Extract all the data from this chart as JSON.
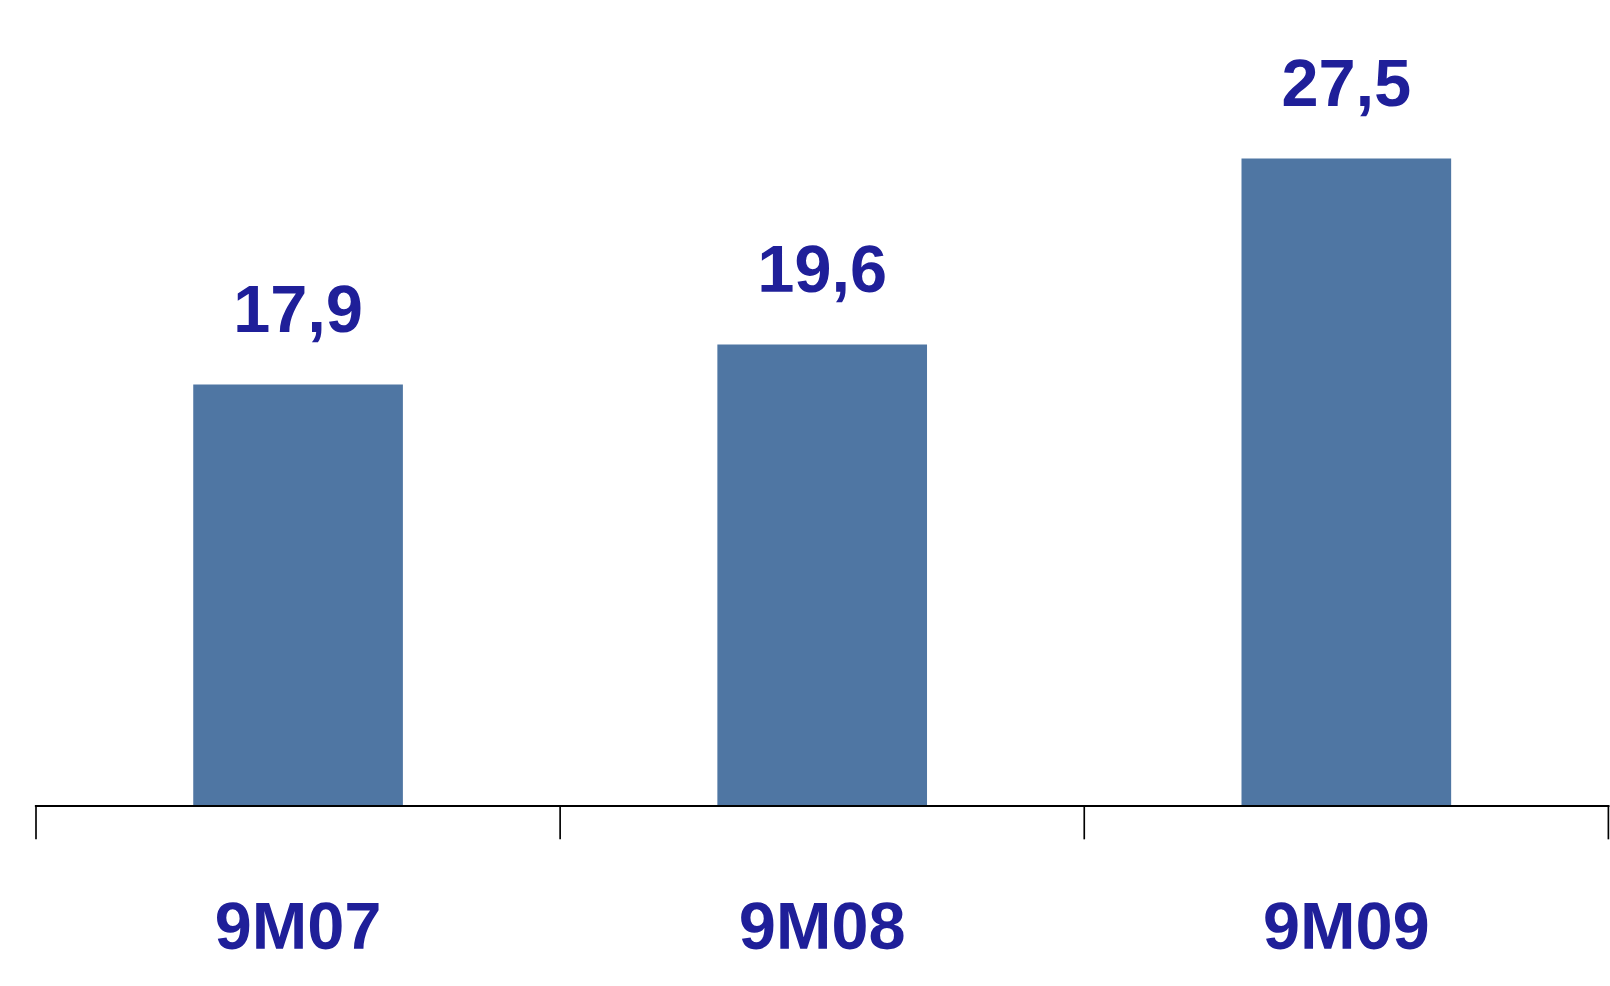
{
  "chart_data": {
    "type": "bar",
    "categories": [
      "9M07",
      "9M08",
      "9M09"
    ],
    "values": [
      17.9,
      19.6,
      27.5
    ],
    "value_labels": [
      "17,9",
      "19,6",
      "27,5"
    ],
    "color": "#4f76a3",
    "grid": false,
    "legend": false
  }
}
